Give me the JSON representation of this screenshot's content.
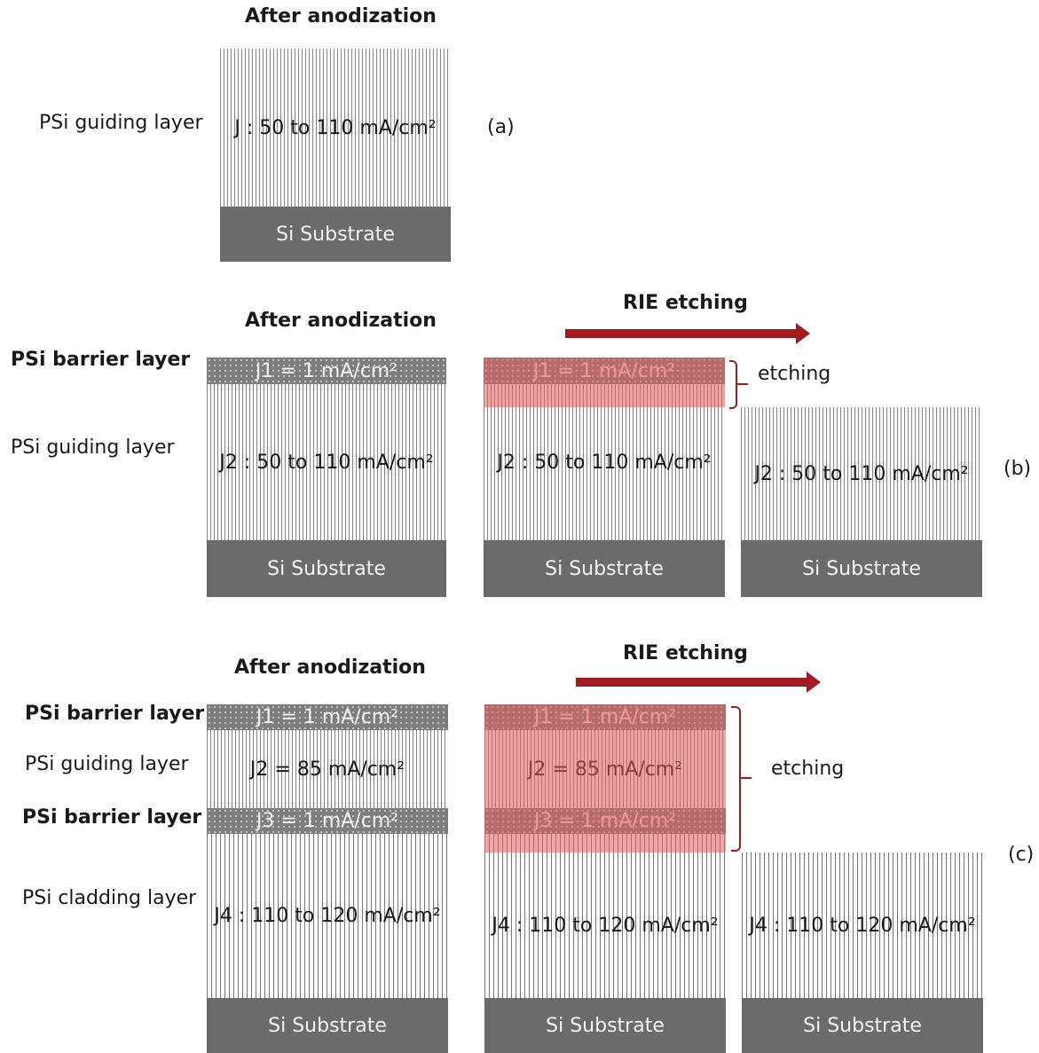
{
  "panel_a": {
    "title": "After anodization",
    "guiding_label": "PSi guiding layer",
    "guiding_text": "J : 50 to 110 mA/cm²",
    "substrate_text": "Si Substrate",
    "tag": "(a)"
  },
  "panel_b": {
    "title": "After anodization",
    "rie_title": "RIE etching",
    "barrier_label": "PSi barrier layer",
    "guiding_label": "PSi guiding layer",
    "j1_text": "J1 = 1 mA/cm²",
    "j2_text": "J2 : 50 to 110 mA/cm²",
    "substrate_text": "Si Substrate",
    "etching_text": "etching",
    "tag": "(b)"
  },
  "panel_c": {
    "title": "After anodization",
    "rie_title": "RIE etching",
    "barrier_label_1": "PSi barrier layer",
    "guiding_label": "PSi guiding layer",
    "barrier_label_2": "PSi barrier layer",
    "cladding_label": "PSi cladding layer",
    "j1_text": "J1 = 1 mA/cm²",
    "j2_text": "J2 = 85 mA/cm²",
    "j3_text": "J3 = 1 mA/cm²",
    "j4_text": "J4 : 110 to 120 mA/cm²",
    "substrate_text": "Si Substrate",
    "etching_text": "etching",
    "tag": "(c)"
  },
  "colors": {
    "arrow": "#a31a1f",
    "etch_overlay": "#e85f5f",
    "substrate": "#6b6b6b",
    "barrier": "#7d7d7d"
  }
}
